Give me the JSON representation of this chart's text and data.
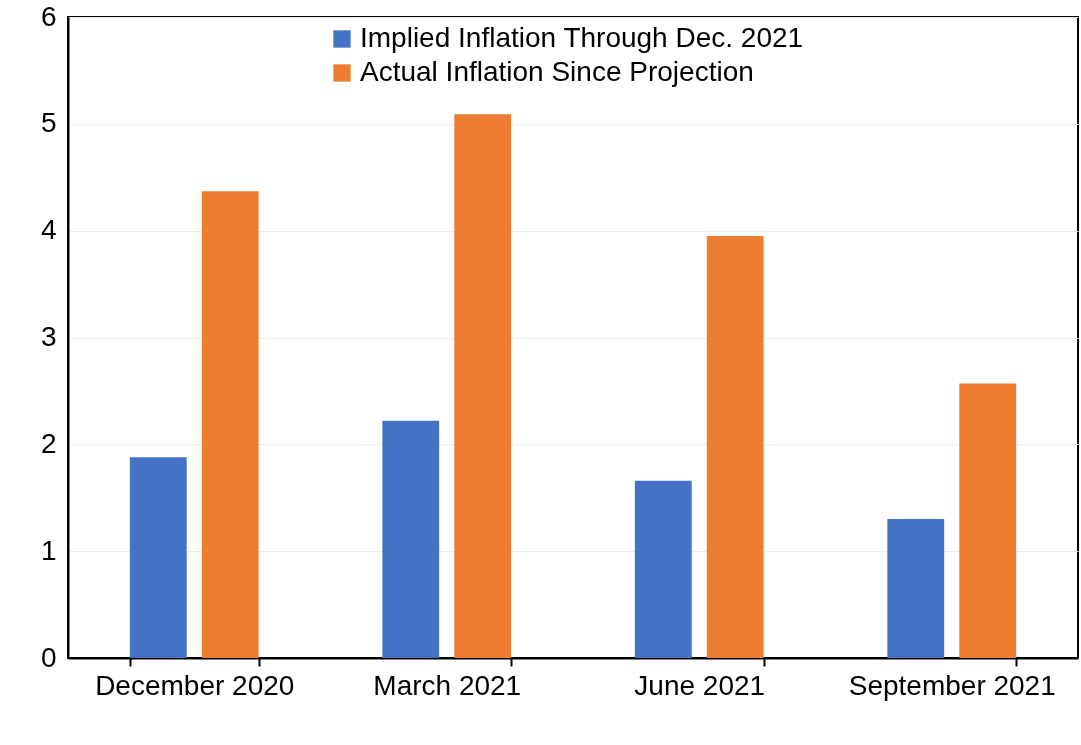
{
  "chart_data": {
    "type": "bar",
    "categories": [
      "December 2020",
      "March 2021",
      "June 2021",
      "September 2021"
    ],
    "series": [
      {
        "name": "Implied Inflation Through Dec. 2021",
        "color": "#4472c4",
        "values": [
          1.88,
          2.22,
          1.66,
          1.3
        ]
      },
      {
        "name": "Actual Inflation Since Projection",
        "color": "#ed7d31",
        "values": [
          4.37,
          5.09,
          3.95,
          2.57
        ]
      }
    ],
    "ylim": [
      0,
      6
    ],
    "yticks": [
      0,
      1,
      2,
      3,
      4,
      5,
      6
    ],
    "grid": "y",
    "legend": "top"
  }
}
